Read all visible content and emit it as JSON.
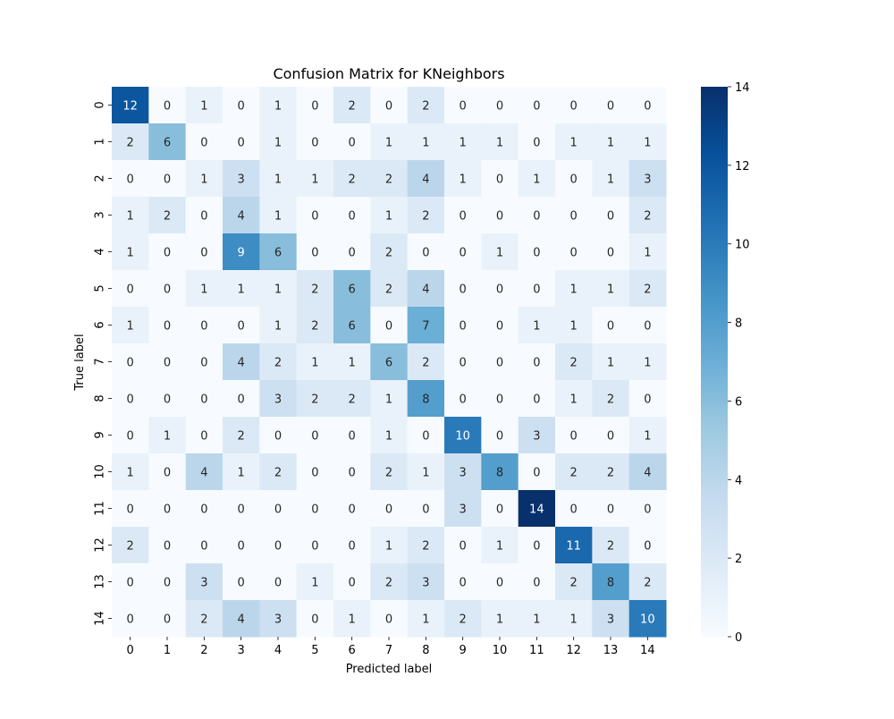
{
  "chart_data": {
    "type": "heatmap",
    "title": "Confusion Matrix for KNeighbors",
    "xlabel": "Predicted label",
    "ylabel": "True label",
    "x_categories": [
      "0",
      "1",
      "2",
      "3",
      "4",
      "5",
      "6",
      "7",
      "8",
      "9",
      "10",
      "11",
      "12",
      "13",
      "14"
    ],
    "y_categories": [
      "0",
      "1",
      "2",
      "3",
      "4",
      "5",
      "6",
      "7",
      "8",
      "9",
      "10",
      "11",
      "12",
      "13",
      "14"
    ],
    "values": [
      [
        12,
        0,
        1,
        0,
        1,
        0,
        2,
        0,
        2,
        0,
        0,
        0,
        0,
        0,
        0
      ],
      [
        2,
        6,
        0,
        0,
        1,
        0,
        0,
        1,
        1,
        1,
        1,
        0,
        1,
        1,
        1
      ],
      [
        0,
        0,
        1,
        3,
        1,
        1,
        2,
        2,
        4,
        1,
        0,
        1,
        0,
        1,
        3
      ],
      [
        1,
        2,
        0,
        4,
        1,
        0,
        0,
        1,
        2,
        0,
        0,
        0,
        0,
        0,
        2
      ],
      [
        1,
        0,
        0,
        9,
        6,
        0,
        0,
        2,
        0,
        0,
        1,
        0,
        0,
        0,
        1
      ],
      [
        0,
        0,
        1,
        1,
        1,
        2,
        6,
        2,
        4,
        0,
        0,
        0,
        1,
        1,
        2
      ],
      [
        1,
        0,
        0,
        0,
        1,
        2,
        6,
        0,
        7,
        0,
        0,
        1,
        1,
        0,
        0
      ],
      [
        0,
        0,
        0,
        4,
        2,
        1,
        1,
        6,
        2,
        0,
        0,
        0,
        2,
        1,
        1
      ],
      [
        0,
        0,
        0,
        0,
        3,
        2,
        2,
        1,
        8,
        0,
        0,
        0,
        1,
        2,
        0
      ],
      [
        0,
        1,
        0,
        2,
        0,
        0,
        0,
        1,
        0,
        10,
        0,
        3,
        0,
        0,
        1
      ],
      [
        1,
        0,
        4,
        1,
        2,
        0,
        0,
        2,
        1,
        3,
        8,
        0,
        2,
        2,
        4
      ],
      [
        0,
        0,
        0,
        0,
        0,
        0,
        0,
        0,
        0,
        3,
        0,
        14,
        0,
        0,
        0
      ],
      [
        2,
        0,
        0,
        0,
        0,
        0,
        0,
        1,
        2,
        0,
        1,
        0,
        11,
        2,
        0
      ],
      [
        0,
        0,
        3,
        0,
        0,
        1,
        0,
        2,
        3,
        0,
        0,
        0,
        2,
        8,
        2
      ],
      [
        0,
        0,
        2,
        4,
        3,
        0,
        1,
        0,
        1,
        2,
        1,
        1,
        1,
        3,
        10
      ]
    ],
    "colorbar": {
      "min": 0,
      "max": 14,
      "ticks": [
        0,
        2,
        4,
        6,
        8,
        10,
        12,
        14
      ],
      "colormap": "Blues"
    },
    "colors": {
      "low": "#f7fbff",
      "high": "#08306b"
    }
  }
}
